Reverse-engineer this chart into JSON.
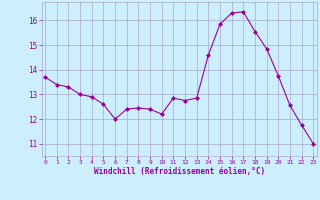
{
  "x": [
    0,
    1,
    2,
    3,
    4,
    5,
    6,
    7,
    8,
    9,
    10,
    11,
    12,
    13,
    14,
    15,
    16,
    17,
    18,
    19,
    20,
    21,
    22,
    23
  ],
  "y": [
    13.7,
    13.4,
    13.3,
    13.0,
    12.9,
    12.6,
    12.0,
    12.4,
    12.45,
    12.4,
    12.2,
    12.85,
    12.75,
    12.85,
    14.6,
    15.85,
    16.3,
    16.35,
    15.55,
    14.85,
    13.75,
    12.55,
    11.75,
    11.0
  ],
  "line_color": "#990099",
  "marker": "D",
  "marker_size": 2.0,
  "bg_color": "#cceeff",
  "grid_color": "#aaaacc",
  "xlabel": "Windchill (Refroidissement éolien,°C)",
  "xlabel_color": "#990099",
  "tick_color": "#990099",
  "ylim": [
    10.5,
    16.75
  ],
  "yticks": [
    11,
    12,
    13,
    14,
    15,
    16
  ],
  "xticks": [
    0,
    1,
    2,
    3,
    4,
    5,
    6,
    7,
    8,
    9,
    10,
    11,
    12,
    13,
    14,
    15,
    16,
    17,
    18,
    19,
    20,
    21,
    22,
    23
  ],
  "figsize": [
    3.2,
    2.0
  ],
  "dpi": 100
}
